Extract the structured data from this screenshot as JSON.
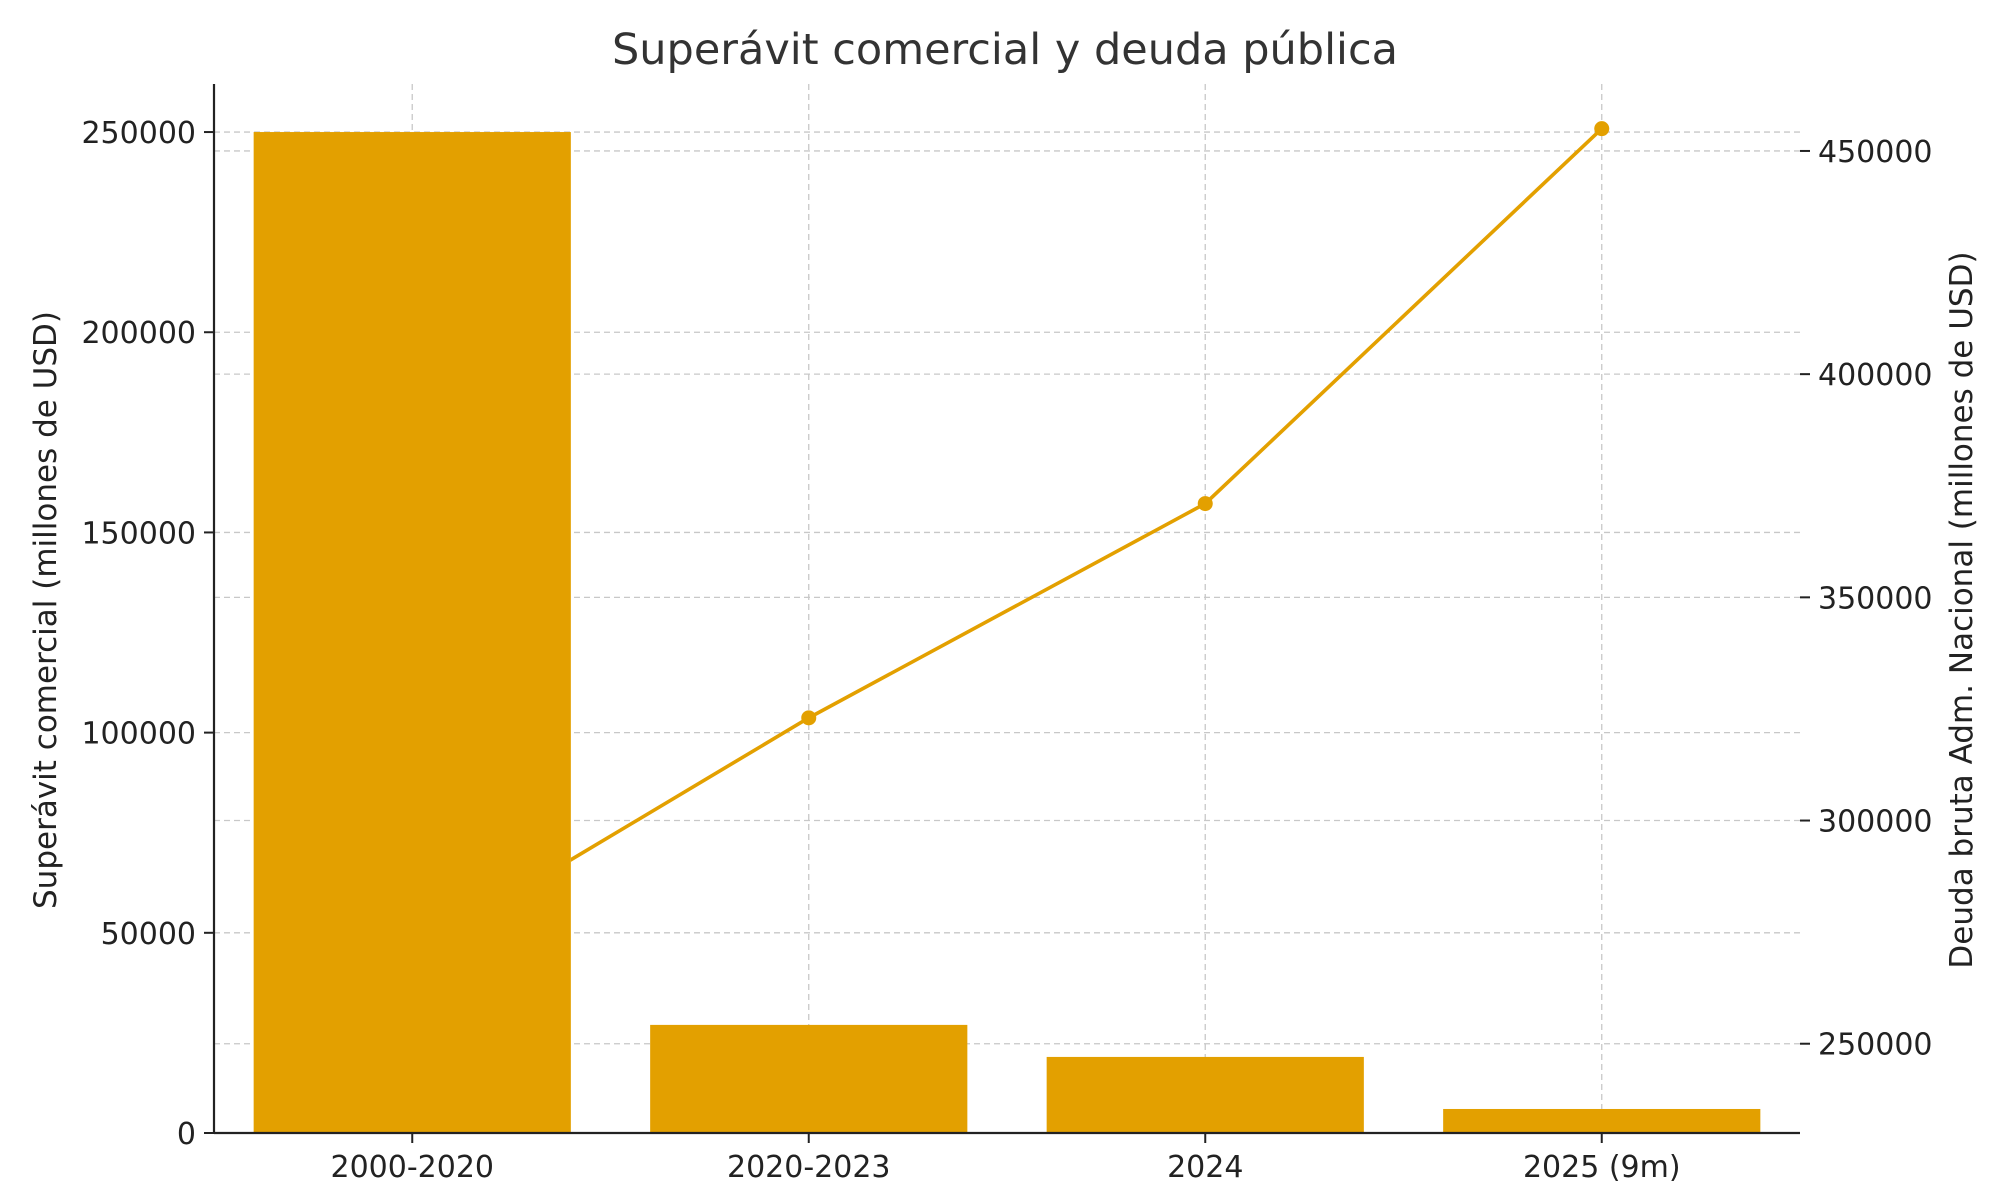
{
  "chart_data": {
    "type": "bar",
    "title": "Superávit comercial y deuda pública",
    "categories": [
      "2000-2020",
      "2020-2023",
      "2024",
      "2025 (9m)"
    ],
    "series": [
      {
        "axis": "left",
        "type": "bar",
        "values": [
          250000,
          27000,
          19000,
          6000
        ],
        "color": "#E3A000"
      },
      {
        "axis": "right",
        "type": "line",
        "values": [
          270000,
          323000,
          371000,
          455000
        ],
        "color": "#E3A000",
        "markers": "circle"
      }
    ],
    "ylabel": "Superávit comercial (millones de USD)",
    "y2label": "Deuda bruta Adm. Nacional (millones de USD)",
    "xlabel": "",
    "ylim": [
      0,
      262000
    ],
    "y2lim": [
      230000,
      465000
    ],
    "yticks": [
      0,
      50000,
      100000,
      150000,
      200000,
      250000
    ],
    "y2ticks": [
      250000,
      300000,
      350000,
      400000,
      450000
    ],
    "grid": true
  }
}
